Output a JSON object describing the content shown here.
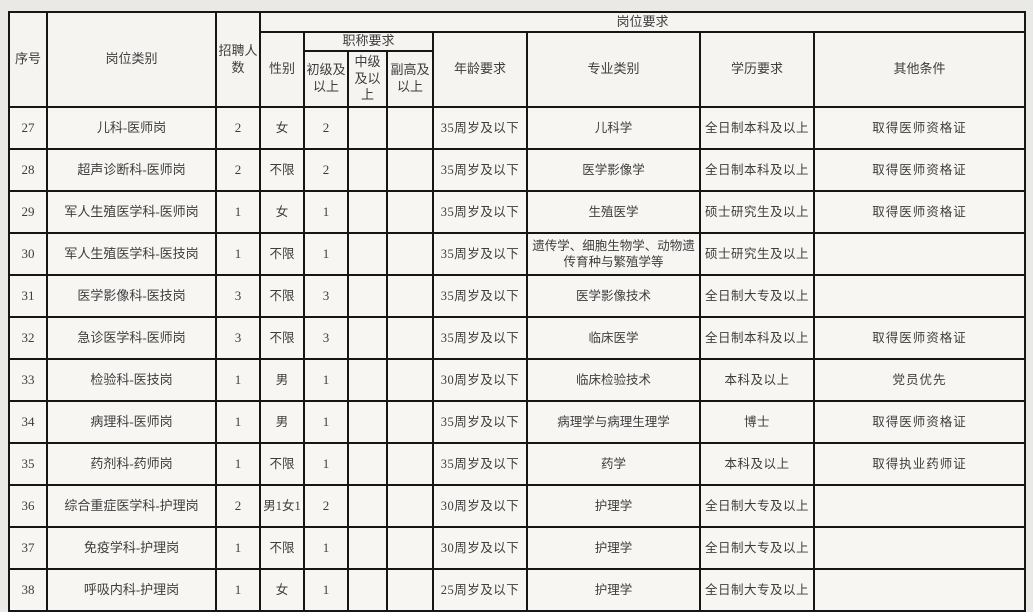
{
  "colors": {
    "page_background": "#ebe9e6",
    "cell_background": "#f7f6f3",
    "border": "#161616",
    "text": "#3d3d3d"
  },
  "table": {
    "header": {
      "no": "序号",
      "category": "岗位类别",
      "count": "招聘人数",
      "requirements_group": "岗位要求",
      "gender": "性别",
      "title_group": "职称要求",
      "junior": "初级及以上",
      "intermediate": "中级及以上",
      "senior": "副高及以上",
      "age": "年龄要求",
      "major": "专业类别",
      "education": "学历要求",
      "other": "其他条件"
    },
    "rows": [
      {
        "no": "27",
        "category": "儿科-医师岗",
        "count": "2",
        "gender": "女",
        "junior": "2",
        "intermediate": "",
        "senior": "",
        "age": "35周岁及以下",
        "major": "儿科学",
        "education": "全日制本科及以上",
        "other": "取得医师资格证"
      },
      {
        "no": "28",
        "category": "超声诊断科-医师岗",
        "count": "2",
        "gender": "不限",
        "junior": "2",
        "intermediate": "",
        "senior": "",
        "age": "35周岁及以下",
        "major": "医学影像学",
        "education": "全日制本科及以上",
        "other": "取得医师资格证"
      },
      {
        "no": "29",
        "category": "军人生殖医学科-医师岗",
        "count": "1",
        "gender": "女",
        "junior": "1",
        "intermediate": "",
        "senior": "",
        "age": "35周岁及以下",
        "major": "生殖医学",
        "education": "硕士研究生及以上",
        "other": "取得医师资格证"
      },
      {
        "no": "30",
        "category": "军人生殖医学科-医技岗",
        "count": "1",
        "gender": "不限",
        "junior": "1",
        "intermediate": "",
        "senior": "",
        "age": "35周岁及以下",
        "major": "遗传学、细胞生物学、动物遗传育种与繁殖学等",
        "education": "硕士研究生及以上",
        "other": ""
      },
      {
        "no": "31",
        "category": "医学影像科-医技岗",
        "count": "3",
        "gender": "不限",
        "junior": "3",
        "intermediate": "",
        "senior": "",
        "age": "35周岁及以下",
        "major": "医学影像技术",
        "education": "全日制大专及以上",
        "other": ""
      },
      {
        "no": "32",
        "category": "急诊医学科-医师岗",
        "count": "3",
        "gender": "不限",
        "junior": "3",
        "intermediate": "",
        "senior": "",
        "age": "35周岁及以下",
        "major": "临床医学",
        "education": "全日制本科及以上",
        "other": "取得医师资格证"
      },
      {
        "no": "33",
        "category": "检验科-医技岗",
        "count": "1",
        "gender": "男",
        "junior": "1",
        "intermediate": "",
        "senior": "",
        "age": "30周岁及以下",
        "major": "临床检验技术",
        "education": "本科及以上",
        "other": "党员优先"
      },
      {
        "no": "34",
        "category": "病理科-医师岗",
        "count": "1",
        "gender": "男",
        "junior": "1",
        "intermediate": "",
        "senior": "",
        "age": "35周岁及以下",
        "major": "病理学与病理生理学",
        "education": "博士",
        "other": "取得医师资格证"
      },
      {
        "no": "35",
        "category": "药剂科-药师岗",
        "count": "1",
        "gender": "不限",
        "junior": "1",
        "intermediate": "",
        "senior": "",
        "age": "35周岁及以下",
        "major": "药学",
        "education": "本科及以上",
        "other": "取得执业药师证"
      },
      {
        "no": "36",
        "category": "综合重症医学科-护理岗",
        "count": "2",
        "gender": "男1女1",
        "junior": "2",
        "intermediate": "",
        "senior": "",
        "age": "30周岁及以下",
        "major": "护理学",
        "education": "全日制大专及以上",
        "other": ""
      },
      {
        "no": "37",
        "category": "免疫学科-护理岗",
        "count": "1",
        "gender": "不限",
        "junior": "1",
        "intermediate": "",
        "senior": "",
        "age": "30周岁及以下",
        "major": "护理学",
        "education": "全日制大专及以上",
        "other": ""
      },
      {
        "no": "38",
        "category": "呼吸内科-护理岗",
        "count": "1",
        "gender": "女",
        "junior": "1",
        "intermediate": "",
        "senior": "",
        "age": "25周岁及以下",
        "major": "护理学",
        "education": "全日制大专及以上",
        "other": ""
      }
    ]
  }
}
